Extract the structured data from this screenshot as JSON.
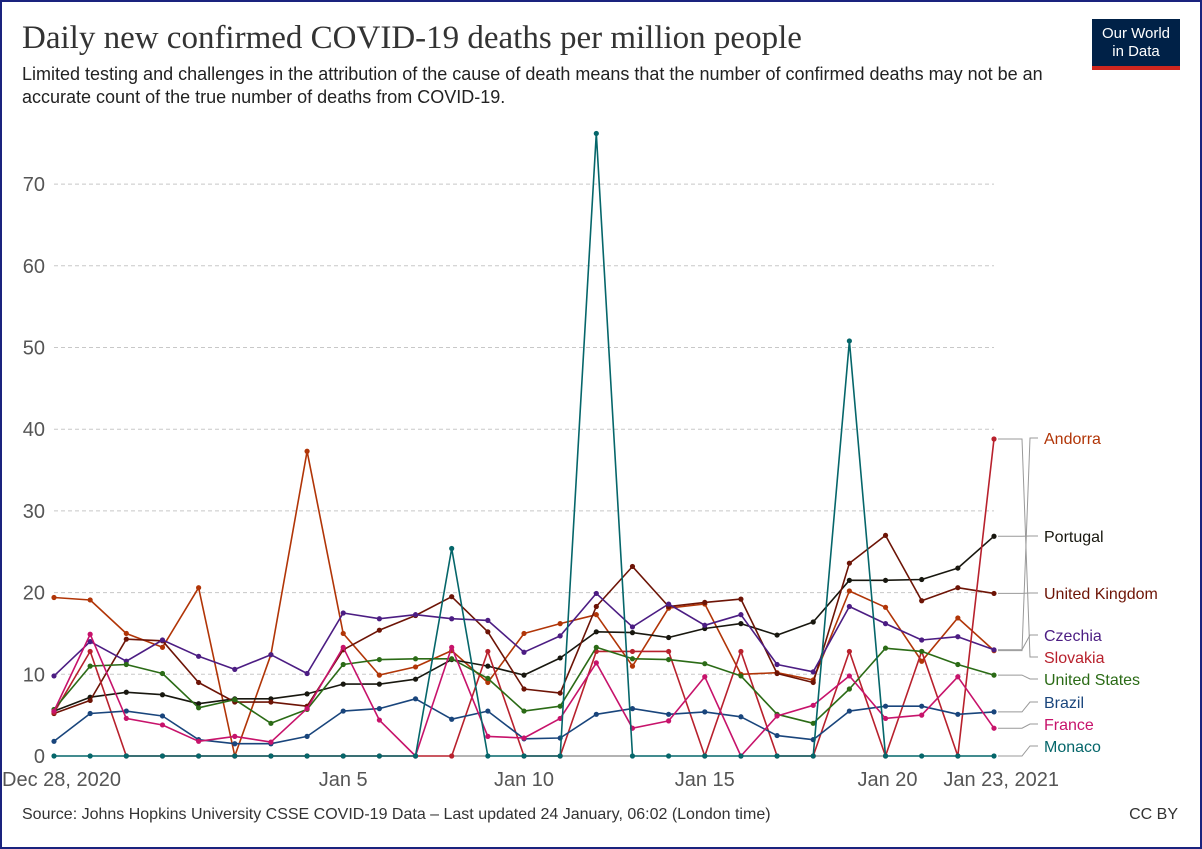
{
  "header": {
    "title": "Daily new confirmed COVID-19 deaths per million people",
    "subtitle": "Limited testing and challenges in the attribution of the cause of death means that the number of confirmed deaths may not be an accurate count of the true number of deaths from COVID-19.",
    "logo_line1": "Our World",
    "logo_line2": "in Data"
  },
  "footer": {
    "source": "Source: Johns Hopkins University CSSE COVID-19 Data – Last updated 24 January, 06:02 (London time)",
    "license": "CC BY"
  },
  "colors": {
    "grid": "#c8c8c8",
    "axis": "#666666",
    "brand": "#002147",
    "brand_accent": "#ce261e"
  },
  "chart_data": {
    "type": "line",
    "title": "Daily new confirmed COVID-19 deaths per million people",
    "xlabel": "",
    "ylabel": "",
    "ylim": [
      0,
      76
    ],
    "y_ticks": [
      0,
      10,
      20,
      30,
      40,
      50,
      60,
      70
    ],
    "x_tick_labels": [
      {
        "day": 0,
        "label": "Dec 28, 2020"
      },
      {
        "day": 8,
        "label": "Jan 5"
      },
      {
        "day": 13,
        "label": "Jan 10"
      },
      {
        "day": 18,
        "label": "Jan 15"
      },
      {
        "day": 23,
        "label": "Jan 20"
      },
      {
        "day": 26,
        "label": "Jan 23, 2021"
      }
    ],
    "x": [
      "2020-12-28",
      "2020-12-29",
      "2020-12-30",
      "2020-12-31",
      "2021-01-01",
      "2021-01-02",
      "2021-01-03",
      "2021-01-04",
      "2021-01-05",
      "2021-01-06",
      "2021-01-07",
      "2021-01-08",
      "2021-01-09",
      "2021-01-10",
      "2021-01-11",
      "2021-01-12",
      "2021-01-13",
      "2021-01-14",
      "2021-01-15",
      "2021-01-16",
      "2021-01-17",
      "2021-01-18",
      "2021-01-19",
      "2021-01-20",
      "2021-01-21",
      "2021-01-22",
      "2021-01-23"
    ],
    "grid": true,
    "legend_placement": "right, labels at line ends",
    "series": [
      {
        "name": "Andorra",
        "color": "#b13507",
        "values": [
          19.4,
          19.1,
          15.0,
          13.3,
          20.6,
          0,
          12.4,
          37.3,
          15.0,
          9.9,
          10.9,
          12.9,
          9.0,
          15.0,
          16.2,
          17.3,
          11.0,
          18.1,
          18.6,
          10.0,
          10.2,
          9.3,
          20.2,
          18.2,
          11.6,
          16.9,
          12.9
        ]
      },
      {
        "name": "Portugal",
        "color": "#18170f",
        "values": [
          5.5,
          7.2,
          7.8,
          7.5,
          6.4,
          7.0,
          7.0,
          7.6,
          8.8,
          8.8,
          9.4,
          11.8,
          11.0,
          9.9,
          12.0,
          15.2,
          15.1,
          14.5,
          15.6,
          16.2,
          14.8,
          16.4,
          21.5,
          21.5,
          21.6,
          23.0,
          26.9
        ]
      },
      {
        "name": "United Kingdom",
        "color": "#6d1406",
        "values": [
          5.2,
          6.8,
          14.3,
          14.1,
          9.0,
          6.6,
          6.6,
          6.1,
          13.0,
          15.4,
          17.2,
          19.5,
          15.2,
          8.2,
          7.7,
          18.3,
          23.2,
          18.3,
          18.8,
          19.2,
          10.1,
          9.0,
          23.6,
          27.0,
          19.0,
          20.6,
          19.9
        ]
      },
      {
        "name": "Czechia",
        "color": "#4c1d83",
        "values": [
          9.8,
          14.0,
          11.6,
          14.2,
          12.2,
          10.6,
          12.4,
          10.1,
          17.5,
          16.8,
          17.3,
          16.8,
          16.6,
          12.7,
          14.7,
          19.9,
          15.8,
          18.6,
          16.0,
          17.3,
          11.2,
          10.3,
          18.3,
          16.2,
          14.2,
          14.6,
          13.0
        ]
      },
      {
        "name": "Slovakia",
        "color": "#b8212d",
        "values": [
          5.3,
          12.8,
          0,
          0,
          0,
          0,
          0,
          0,
          0,
          0,
          0,
          0,
          12.8,
          0,
          0,
          12.8,
          12.8,
          12.8,
          0,
          12.8,
          0,
          0,
          12.8,
          0,
          12.8,
          0,
          38.8
        ]
      },
      {
        "name": "United States",
        "color": "#2b6b16",
        "values": [
          5.7,
          11.0,
          11.2,
          10.1,
          5.9,
          6.9,
          4.0,
          5.7,
          11.2,
          11.8,
          11.9,
          11.9,
          9.5,
          5.5,
          6.1,
          13.3,
          11.9,
          11.8,
          11.3,
          9.8,
          5.1,
          4.0,
          8.2,
          13.2,
          12.8,
          11.2,
          9.9
        ]
      },
      {
        "name": "Brazil",
        "color": "#19457c",
        "values": [
          1.8,
          5.2,
          5.5,
          4.9,
          2.0,
          1.5,
          1.5,
          2.4,
          5.5,
          5.8,
          7.0,
          4.5,
          5.5,
          2.1,
          2.2,
          5.1,
          5.8,
          5.1,
          5.4,
          4.8,
          2.5,
          2.0,
          5.5,
          6.1,
          6.1,
          5.1,
          5.4
        ]
      },
      {
        "name": "France",
        "color": "#c7136b",
        "values": [
          5.5,
          14.9,
          4.6,
          3.8,
          1.8,
          2.4,
          1.7,
          5.8,
          13.3,
          4.4,
          0,
          13.3,
          2.4,
          2.2,
          4.6,
          11.4,
          3.4,
          4.3,
          9.7,
          0,
          4.9,
          6.2,
          9.8,
          4.6,
          5.0,
          9.7,
          3.4
        ]
      },
      {
        "name": "Monaco",
        "color": "#05666a",
        "values": [
          0,
          0,
          0,
          0,
          0,
          0,
          0,
          0,
          0,
          0,
          0,
          25.4,
          0,
          0,
          0,
          76.2,
          0,
          0,
          0,
          0,
          0,
          0,
          50.8,
          0,
          0,
          0,
          0
        ]
      }
    ],
    "legend_order": [
      "Andorra",
      "Portugal",
      "United Kingdom",
      "Czechia",
      "Slovakia",
      "United States",
      "Brazil",
      "France",
      "Monaco"
    ]
  }
}
